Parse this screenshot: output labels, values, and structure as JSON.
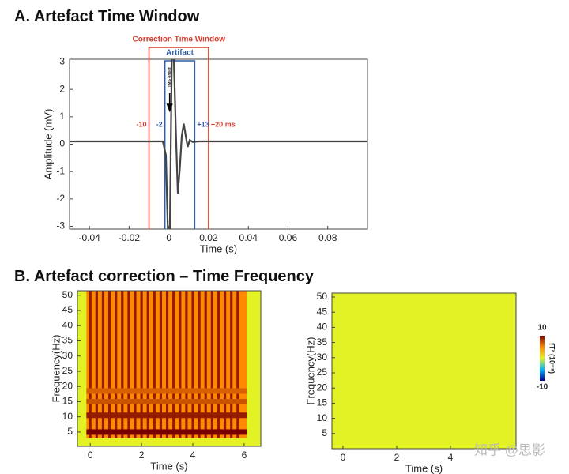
{
  "chart_data": [
    {
      "type": "line",
      "title": "A. Artefact Time Window",
      "x_label": "Time (s)",
      "y_label": "Amplitude (mV)",
      "xlim": [
        -0.05,
        0.1
      ],
      "ylim": [
        -3.1,
        3.1
      ],
      "xticks": [
        -0.04,
        -0.02,
        0,
        0.02,
        0.04,
        0.06,
        0.08
      ],
      "yticks": [
        -3,
        -2,
        -1,
        0,
        1,
        2,
        3
      ],
      "color": "#444444",
      "x": [
        -0.05,
        -0.03,
        -0.01,
        -0.003,
        -0.0015,
        -0.0005,
        0.0005,
        0.0015,
        0.0025,
        0.0035,
        0.0045,
        0.0055,
        0.0065,
        0.0075,
        0.0085,
        0.0095,
        0.0105,
        0.012,
        0.015,
        0.02,
        0.05,
        0.1
      ],
      "values": [
        0.1,
        0.1,
        0.1,
        0.1,
        -0.4,
        -3.2,
        -3.2,
        3.2,
        3.2,
        0.5,
        -1.8,
        -0.9,
        0.3,
        0.75,
        0.3,
        -0.1,
        0.15,
        0.08,
        0.1,
        0.1,
        0.1,
        0.1
      ],
      "windows": [
        {
          "name": "Correction Time Window",
          "start": -0.01,
          "end": 0.02,
          "color": "#d93a2b",
          "start_label": "-10",
          "end_label": "+20 ms"
        },
        {
          "name": "Artifact",
          "start": -0.002,
          "end": 0.013,
          "color": "#2f5fa5",
          "start_label": "-2",
          "end_label": "+13"
        }
      ],
      "onset_label": "TMS onset"
    },
    {
      "type": "heatmap",
      "title": "B. Artefact correction – Time Frequency",
      "x_label": "Time (s)",
      "y_label": "Frequency(Hz)",
      "xlim": [
        -0.5,
        6.65
      ],
      "ylim": [
        0.3,
        51.5
      ],
      "xticks": [
        0,
        2,
        4,
        6
      ],
      "yticks": [
        5,
        10,
        15,
        20,
        25,
        30,
        35,
        40,
        45,
        50
      ],
      "colormap": [
        "#00008f",
        "#00b4ff",
        "#e2f224",
        "#ff8a00",
        "#7a0000"
      ],
      "clim": [
        -10,
        10
      ],
      "background_value": 0,
      "region": {
        "x": [
          -0.15,
          6.1
        ],
        "y": [
          3,
          51.5
        ],
        "value": 5
      },
      "stripe_times": [
        0,
        0.25,
        0.5,
        0.75,
        1,
        1.25,
        1.5,
        1.75,
        2,
        2.25,
        2.5,
        2.75,
        3,
        3.25,
        3.5,
        3.75,
        4,
        4.25,
        4.5,
        4.75,
        5,
        5.25,
        5.5,
        5.75
      ],
      "stripe_value": 9,
      "bands": [
        {
          "freq": 5,
          "value": 10
        },
        {
          "freq": 10.5,
          "value": 9
        },
        {
          "freq": 15,
          "value": 7
        },
        {
          "freq": 18.5,
          "value": 6.5
        }
      ]
    },
    {
      "type": "heatmap",
      "x_label": "Time (s)",
      "y_label": "Frequency(Hz)",
      "xlim": [
        -0.41,
        6.44
      ],
      "ylim": [
        0,
        51.3
      ],
      "xticks": [
        0,
        2,
        4
      ],
      "yticks": [
        5,
        10,
        15,
        20,
        25,
        30,
        35,
        40,
        45,
        50
      ],
      "colormap": [
        "#00008f",
        "#00b4ff",
        "#e2f224",
        "#ff8a00",
        "#7a0000"
      ],
      "clim": [
        -10,
        10
      ],
      "background_value": 0,
      "colorbar": {
        "ticks": [
          10,
          -10
        ],
        "label": "fT² (10⁻⁸)"
      }
    }
  ],
  "watermark": "知乎 @思影"
}
